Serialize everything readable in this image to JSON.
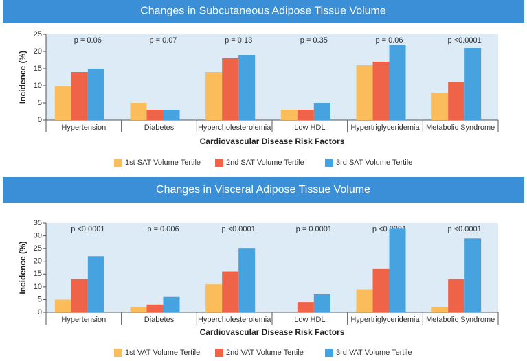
{
  "chart_data": [
    {
      "type": "bar",
      "title": "Changes in Subcutaneous Adipose Tissue Volume",
      "x_label": "Cardiovascular Disease Risk Factors",
      "y_label": "Incidence (%)",
      "categories": [
        "Hypertension",
        "Diabetes",
        "Hypercholesterolemia",
        "Low HDL",
        "Hypertriglyceridemia",
        "Metabolic Syndrome"
      ],
      "annotations": [
        "p = 0.06",
        "p = 0.07",
        "p = 0.13",
        "p = 0.35",
        "p = 0.06",
        "p <0.0001"
      ],
      "series": [
        {
          "name": "1st SAT Volume Tertile",
          "color": "#fbbd5c",
          "values": [
            10,
            5,
            14,
            3,
            16,
            8
          ]
        },
        {
          "name": "2nd SAT Volume Tertile",
          "color": "#ef6348",
          "values": [
            14,
            3,
            18,
            3,
            17,
            11
          ]
        },
        {
          "name": "3rd SAT Volume Tertile",
          "color": "#47a3df",
          "values": [
            15,
            3,
            19,
            5,
            22,
            21
          ]
        }
      ],
      "ylim": [
        0,
        25
      ],
      "yticks": [
        0,
        5,
        10,
        15,
        20,
        25
      ]
    },
    {
      "type": "bar",
      "title": "Changes in Visceral Adipose Tissue Volume",
      "x_label": "Cardiovascular Disease Risk Factors",
      "y_label": "Incidence (%)",
      "categories": [
        "Hypertension",
        "Diabetes",
        "Hypercholesterolemia",
        "Low HDL",
        "Hypertriglyceridemia",
        "Metabolic Syndrome"
      ],
      "annotations": [
        "p <0.0001",
        "p = 0.006",
        "p <0.0001",
        "p = 0.0001",
        "p <0.0001",
        "p <0.0001"
      ],
      "series": [
        {
          "name": "1st VAT Volume Tertile",
          "color": "#fbbd5c",
          "values": [
            5,
            2,
            11,
            0,
            9,
            2
          ]
        },
        {
          "name": "2nd VAT Volume Tertile",
          "color": "#ef6348",
          "values": [
            13,
            3,
            16,
            4,
            17,
            13
          ]
        },
        {
          "name": "3rd VAT Volume Tertile",
          "color": "#47a3df",
          "values": [
            22,
            6,
            25,
            7,
            33,
            29
          ]
        }
      ],
      "ylim": [
        0,
        35
      ],
      "yticks": [
        0,
        5,
        10,
        15,
        20,
        25,
        30,
        35
      ]
    }
  ]
}
